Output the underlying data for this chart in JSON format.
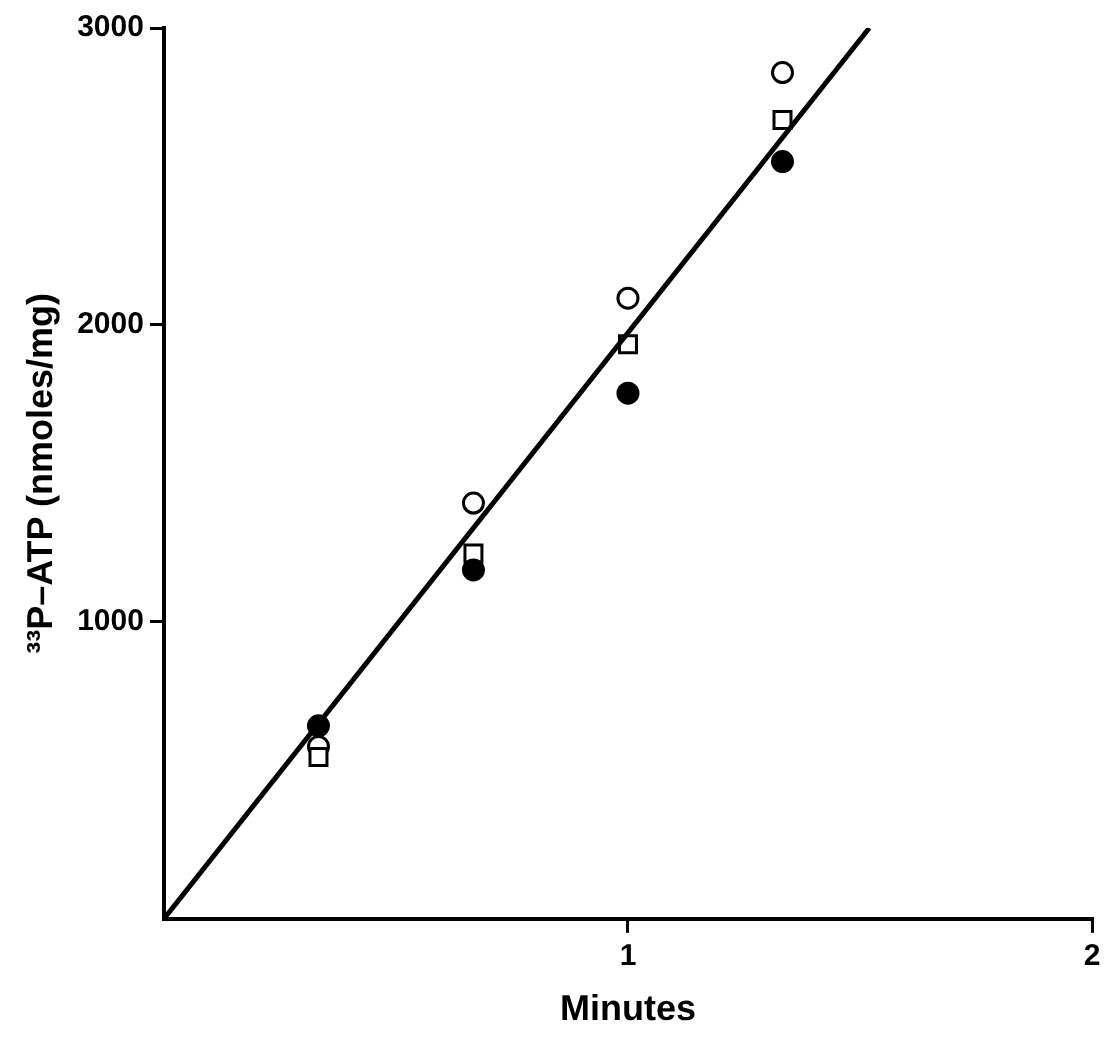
{
  "chart_data": {
    "type": "scatter",
    "xlabel": "Minutes",
    "ylabel": "³³P–ATP (nmoles/mg)",
    "xlim": [
      0,
      2
    ],
    "xticks": [
      1,
      2
    ],
    "ylim": [
      0,
      3000
    ],
    "yticks": [
      1000,
      2000,
      3000
    ],
    "grid": false,
    "legend": false,
    "series": [
      {
        "color": "#ffffff",
        "marker": "circle",
        "x": [
          0.333,
          0.667,
          1.0,
          1.333
        ],
        "values": [
          580,
          1400,
          2090,
          2850
        ]
      },
      {
        "color": "#ffffff",
        "marker": "square",
        "x": [
          0.333,
          0.667,
          1.0,
          1.333
        ],
        "values": [
          545,
          1230,
          1935,
          2690
        ]
      },
      {
        "color": "#000000",
        "marker": "circle",
        "x": [
          0.333,
          0.667,
          1.0,
          1.333
        ],
        "values": [
          650,
          1175,
          1770,
          2550
        ]
      },
      {
        "type": "line",
        "color": "#000000",
        "marker": "none",
        "line_style": "solid",
        "x": [
          0,
          1.52
        ],
        "values": [
          0,
          3000
        ]
      }
    ]
  }
}
